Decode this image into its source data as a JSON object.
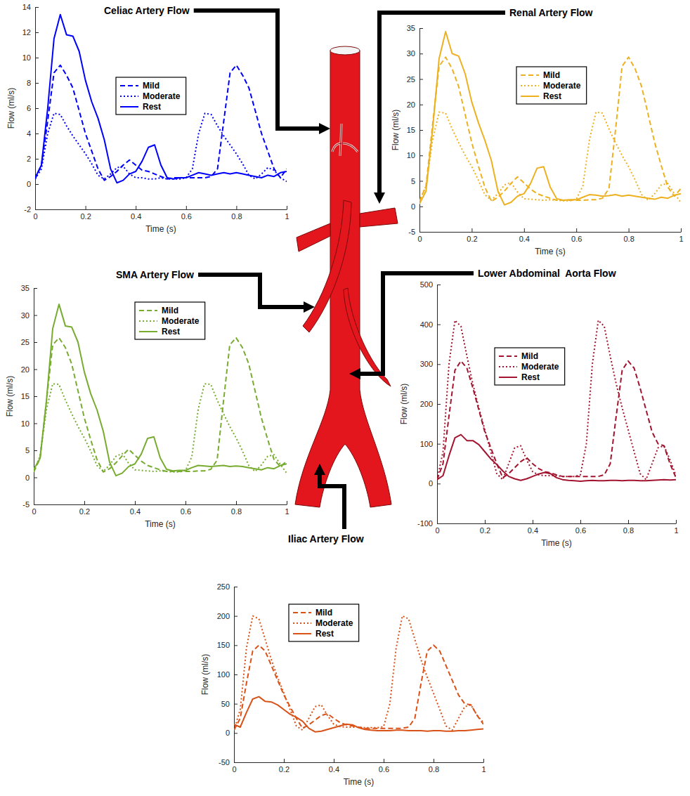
{
  "chart_data": [
    {
      "type": "line",
      "title": "Celiac Artery Flow",
      "x_label": "Time (s)",
      "y_label": "Flow (ml/s)",
      "x": [
        0,
        0.025,
        0.05,
        0.075,
        0.1,
        0.125,
        0.15,
        0.175,
        0.2,
        0.225,
        0.25,
        0.275,
        0.3,
        0.325,
        0.35,
        0.375,
        0.4,
        0.425,
        0.45,
        0.475,
        0.5,
        0.525,
        0.55,
        0.575,
        0.6,
        0.625,
        0.65,
        0.675,
        0.7,
        0.725,
        0.75,
        0.775,
        0.8,
        0.825,
        0.85,
        0.875,
        0.9,
        0.925,
        0.95,
        0.975,
        1
      ],
      "series": [
        {
          "name": "Mild",
          "color": "#0000ff",
          "line_style": "dashed",
          "values": [
            0.4,
            1.5,
            5,
            8.8,
            9.4,
            8.6,
            7.6,
            5.8,
            4,
            2.6,
            1.2,
            0.3,
            0.6,
            1,
            1.5,
            1.9,
            1.5,
            1.1,
            1,
            0.8,
            0.6,
            0.4,
            0.5,
            0.5,
            0.5,
            0.5,
            0.5,
            0.5,
            0.6,
            1.2,
            5,
            8.8,
            9.4,
            8.6,
            7.6,
            5.8,
            4,
            2.6,
            1.2,
            0.5,
            1.2
          ]
        },
        {
          "name": "Moderate",
          "color": "#0000ff",
          "line_style": "dotted",
          "values": [
            0.4,
            1.2,
            4,
            5.6,
            5.5,
            4.6,
            3.8,
            3.1,
            2.4,
            1.6,
            0.7,
            0.4,
            0.8,
            1.3,
            1.4,
            0.8,
            0.5,
            0.5,
            0.4,
            0.4,
            0.5,
            0.4,
            0.4,
            0.4,
            0.5,
            1.2,
            4,
            5.6,
            5.5,
            4.6,
            3.8,
            3.1,
            2.4,
            1.6,
            0.7,
            0.4,
            0.8,
            1.3,
            1.1,
            0.5,
            0.2
          ]
        },
        {
          "name": "Rest",
          "color": "#0000ff",
          "line_style": "solid",
          "values": [
            0.5,
            1.5,
            6,
            11.5,
            13.4,
            11.8,
            11.7,
            10.5,
            8.2,
            6.5,
            5.2,
            3.5,
            1.2,
            0.1,
            0.3,
            0.8,
            1,
            1.8,
            2.9,
            3.1,
            1.5,
            0.5,
            0.4,
            0.5,
            0.5,
            0.7,
            0.9,
            0.8,
            0.7,
            0.8,
            0.9,
            0.8,
            0.9,
            0.8,
            0.7,
            0.6,
            0.5,
            0.7,
            0.6,
            0.9,
            1
          ]
        }
      ],
      "xlim": [
        0,
        1
      ],
      "ylim": [
        -2,
        14
      ],
      "xticks": [
        0,
        0.2,
        0.4,
        0.6,
        0.8,
        1
      ],
      "yticks": [
        -2,
        0,
        2,
        4,
        6,
        8,
        10,
        12,
        14
      ],
      "legend": "upper center"
    },
    {
      "type": "line",
      "title": "Renal Artery Flow",
      "x_label": "Time (s)",
      "y_label": "Flow (ml/s)",
      "x": [
        0,
        0.025,
        0.05,
        0.075,
        0.1,
        0.125,
        0.15,
        0.175,
        0.2,
        0.225,
        0.25,
        0.275,
        0.3,
        0.325,
        0.35,
        0.375,
        0.4,
        0.425,
        0.45,
        0.475,
        0.5,
        0.525,
        0.55,
        0.575,
        0.6,
        0.625,
        0.65,
        0.675,
        0.7,
        0.725,
        0.75,
        0.775,
        0.8,
        0.825,
        0.85,
        0.875,
        0.9,
        0.925,
        0.95,
        0.975,
        1
      ],
      "series": [
        {
          "name": "Mild",
          "color": "#edb120",
          "line_style": "dashed",
          "values": [
            1,
            4,
            16,
            27.5,
            29.3,
            27,
            23.5,
            18,
            12.5,
            8,
            3.8,
            1,
            1.8,
            3,
            4.5,
            5.8,
            4.6,
            3.4,
            2.5,
            2,
            1.6,
            1.2,
            1.2,
            1.2,
            1.2,
            1.2,
            1.3,
            1.3,
            1.6,
            3.5,
            15,
            27.5,
            29.3,
            27,
            23.5,
            18,
            12.5,
            8,
            3.8,
            2,
            3.5
          ]
        },
        {
          "name": "Moderate",
          "color": "#edb120",
          "line_style": "dotted",
          "values": [
            1,
            4,
            13,
            18.5,
            18.3,
            15.2,
            12.5,
            10,
            7.8,
            5.2,
            2.3,
            1.2,
            2.5,
            4.2,
            4.7,
            2.8,
            1.5,
            1.4,
            1.3,
            1.2,
            1.3,
            1.2,
            1.1,
            1.1,
            1.4,
            4,
            13,
            18.5,
            18.3,
            15.2,
            12.5,
            10,
            7.8,
            5.2,
            2.3,
            1.2,
            2.5,
            4.2,
            4.5,
            2.5,
            0.8
          ]
        },
        {
          "name": "Rest",
          "color": "#edb120",
          "line_style": "solid",
          "values": [
            0.5,
            3,
            15,
            29,
            34.3,
            30,
            29.5,
            26,
            20.5,
            16.5,
            13,
            9,
            3,
            0.3,
            0.8,
            2,
            2.5,
            4.5,
            7.5,
            7.8,
            3.8,
            1.5,
            1.2,
            1.3,
            1.3,
            1.8,
            2.3,
            2.2,
            2,
            2.1,
            2.3,
            2,
            2.2,
            2,
            1.8,
            1.6,
            1.4,
            1.8,
            1.6,
            2.2,
            2.5
          ]
        }
      ],
      "xlim": [
        0,
        1
      ],
      "ylim": [
        -5,
        35
      ],
      "xticks": [
        0,
        0.2,
        0.4,
        0.6,
        0.8,
        1
      ],
      "yticks": [
        -5,
        0,
        5,
        10,
        15,
        20,
        25,
        30,
        35
      ],
      "legend": "upper center"
    },
    {
      "type": "line",
      "title": "SMA Artery Flow",
      "x_label": "Time (s)",
      "y_label": "Flow (ml/s)",
      "x": [
        0,
        0.025,
        0.05,
        0.075,
        0.1,
        0.125,
        0.15,
        0.175,
        0.2,
        0.225,
        0.25,
        0.275,
        0.3,
        0.325,
        0.35,
        0.375,
        0.4,
        0.425,
        0.45,
        0.475,
        0.5,
        0.525,
        0.55,
        0.575,
        0.6,
        0.625,
        0.65,
        0.675,
        0.7,
        0.725,
        0.75,
        0.775,
        0.8,
        0.825,
        0.85,
        0.875,
        0.9,
        0.925,
        0.95,
        0.975,
        1
      ],
      "series": [
        {
          "name": "Mild",
          "color": "#77ac30",
          "line_style": "dashed",
          "values": [
            1,
            3.5,
            14,
            24.5,
            25.8,
            24,
            21,
            16,
            11,
            7,
            3.3,
            1,
            1.6,
            2.7,
            4,
            5.2,
            4.1,
            3,
            2.2,
            1.8,
            1.4,
            1.1,
            1.1,
            1.1,
            1.1,
            1.1,
            1.2,
            1.2,
            1.5,
            3.2,
            14,
            24.5,
            25.8,
            24,
            21,
            16,
            11,
            7,
            3.3,
            2,
            3
          ]
        },
        {
          "name": "Moderate",
          "color": "#77ac30",
          "line_style": "dotted",
          "values": [
            1,
            4,
            12.5,
            17.3,
            17.2,
            14.3,
            11.8,
            9.4,
            7.3,
            4.9,
            2.2,
            1.1,
            2.3,
            3.9,
            4.4,
            2.6,
            1.4,
            1.3,
            1.2,
            1.1,
            1.2,
            1.1,
            1,
            1,
            1.3,
            3.8,
            12.5,
            17.3,
            17.2,
            14.3,
            11.8,
            9.4,
            7.3,
            4.9,
            2.2,
            1.1,
            2.3,
            3.9,
            4.2,
            2.4,
            0.8
          ]
        },
        {
          "name": "Rest",
          "color": "#77ac30",
          "line_style": "solid",
          "values": [
            1.5,
            3.5,
            14,
            27.5,
            32,
            28,
            27.8,
            25,
            19.5,
            15.5,
            12.5,
            8.5,
            2.8,
            0.3,
            0.8,
            2,
            2.5,
            4.3,
            7.2,
            7.5,
            3.6,
            1.5,
            1.2,
            1.3,
            1.3,
            1.8,
            2.2,
            2.1,
            2,
            2.1,
            2.2,
            2,
            2.1,
            2,
            1.8,
            1.6,
            1.4,
            1.8,
            1.6,
            2.2,
            2.5
          ]
        }
      ],
      "xlim": [
        0,
        1
      ],
      "ylim": [
        -5,
        35
      ],
      "xticks": [
        0,
        0.2,
        0.4,
        0.6,
        0.8,
        1
      ],
      "yticks": [
        -5,
        0,
        5,
        10,
        15,
        20,
        25,
        30,
        35
      ],
      "legend": "upper center"
    },
    {
      "type": "line",
      "title": "Lower Abdominal  Aorta Flow",
      "x_label": "Time (s)",
      "y_label": "Flow (ml/s)",
      "x": [
        0,
        0.025,
        0.05,
        0.075,
        0.1,
        0.125,
        0.15,
        0.175,
        0.2,
        0.225,
        0.25,
        0.275,
        0.3,
        0.325,
        0.35,
        0.375,
        0.4,
        0.425,
        0.45,
        0.475,
        0.5,
        0.525,
        0.55,
        0.575,
        0.6,
        0.625,
        0.65,
        0.675,
        0.7,
        0.725,
        0.75,
        0.775,
        0.8,
        0.825,
        0.85,
        0.875,
        0.9,
        0.925,
        0.95,
        0.975,
        1
      ],
      "series": [
        {
          "name": "Mild",
          "color": "#a2142f",
          "line_style": "dashed",
          "values": [
            10,
            50,
            170,
            285,
            308,
            290,
            240,
            185,
            130,
            90,
            50,
            15,
            25,
            40,
            55,
            65,
            50,
            38,
            30,
            27,
            22,
            18,
            18,
            18,
            18,
            18,
            18,
            18,
            22,
            50,
            170,
            285,
            308,
            290,
            240,
            185,
            130,
            100,
            95,
            50,
            15
          ]
        },
        {
          "name": "Moderate",
          "color": "#a2142f",
          "line_style": "dotted",
          "values": [
            10,
            80,
            300,
            410,
            395,
            320,
            250,
            190,
            135,
            80,
            25,
            10,
            50,
            90,
            95,
            60,
            30,
            22,
            20,
            20,
            20,
            18,
            18,
            18,
            22,
            100,
            300,
            410,
            395,
            320,
            250,
            190,
            135,
            80,
            25,
            10,
            50,
            90,
            95,
            60,
            20
          ]
        },
        {
          "name": "Rest",
          "color": "#a2142f",
          "line_style": "solid",
          "values": [
            10,
            20,
            70,
            115,
            123,
            108,
            108,
            98,
            80,
            62,
            48,
            32,
            18,
            12,
            8,
            12,
            18,
            24,
            28,
            25,
            15,
            10,
            8,
            7,
            6,
            7,
            8,
            7,
            7,
            8,
            8,
            7,
            8,
            8,
            7,
            7,
            8,
            9,
            10,
            9,
            10
          ]
        }
      ],
      "xlim": [
        0,
        1
      ],
      "ylim": [
        -100,
        500
      ],
      "xticks": [
        0,
        0.2,
        0.4,
        0.6,
        0.8,
        1
      ],
      "yticks": [
        -100,
        0,
        100,
        200,
        300,
        400,
        500
      ],
      "legend": "upper center"
    },
    {
      "type": "line",
      "title": "Iliac Artery Flow",
      "x_label": "Time (s)",
      "y_label": "Flow (ml/s)",
      "x": [
        0,
        0.025,
        0.05,
        0.075,
        0.1,
        0.125,
        0.15,
        0.175,
        0.2,
        0.225,
        0.25,
        0.275,
        0.3,
        0.325,
        0.35,
        0.375,
        0.4,
        0.425,
        0.45,
        0.475,
        0.5,
        0.525,
        0.55,
        0.575,
        0.6,
        0.625,
        0.65,
        0.675,
        0.7,
        0.725,
        0.75,
        0.775,
        0.8,
        0.825,
        0.85,
        0.875,
        0.9,
        0.925,
        0.95,
        0.975,
        1
      ],
      "series": [
        {
          "name": "Mild",
          "color": "#d95319",
          "line_style": "dashed",
          "values": [
            5,
            25,
            85,
            140,
            150,
            140,
            115,
            90,
            65,
            45,
            25,
            8,
            14,
            22,
            30,
            33,
            25,
            18,
            14,
            12,
            10,
            8,
            8,
            8,
            8,
            8,
            8,
            8,
            10,
            25,
            85,
            140,
            150,
            140,
            115,
            90,
            65,
            50,
            48,
            30,
            15
          ]
        },
        {
          "name": "Moderate",
          "color": "#d95319",
          "line_style": "dotted",
          "values": [
            5,
            40,
            145,
            200,
            195,
            160,
            125,
            95,
            68,
            40,
            12,
            5,
            25,
            45,
            48,
            30,
            15,
            11,
            10,
            10,
            10,
            9,
            9,
            9,
            11,
            50,
            145,
            200,
            195,
            160,
            125,
            95,
            68,
            40,
            12,
            5,
            25,
            45,
            48,
            30,
            18
          ]
        },
        {
          "name": "Rest",
          "color": "#d95319",
          "line_style": "solid",
          "values": [
            15,
            10,
            35,
            58,
            62,
            54,
            53,
            48,
            40,
            32,
            27,
            20,
            8,
            2,
            3,
            6,
            9,
            12,
            15,
            14,
            9,
            6,
            5,
            4,
            4,
            4,
            5,
            5,
            4,
            4,
            4,
            3,
            4,
            4,
            3,
            3,
            4,
            4,
            5,
            6,
            7
          ]
        }
      ],
      "xlim": [
        0,
        1
      ],
      "ylim": [
        -50,
        250
      ],
      "xticks": [
        0,
        0.2,
        0.4,
        0.6,
        0.8,
        1
      ],
      "yticks": [
        -50,
        0,
        50,
        100,
        150,
        200,
        250
      ],
      "legend": "upper center"
    }
  ]
}
